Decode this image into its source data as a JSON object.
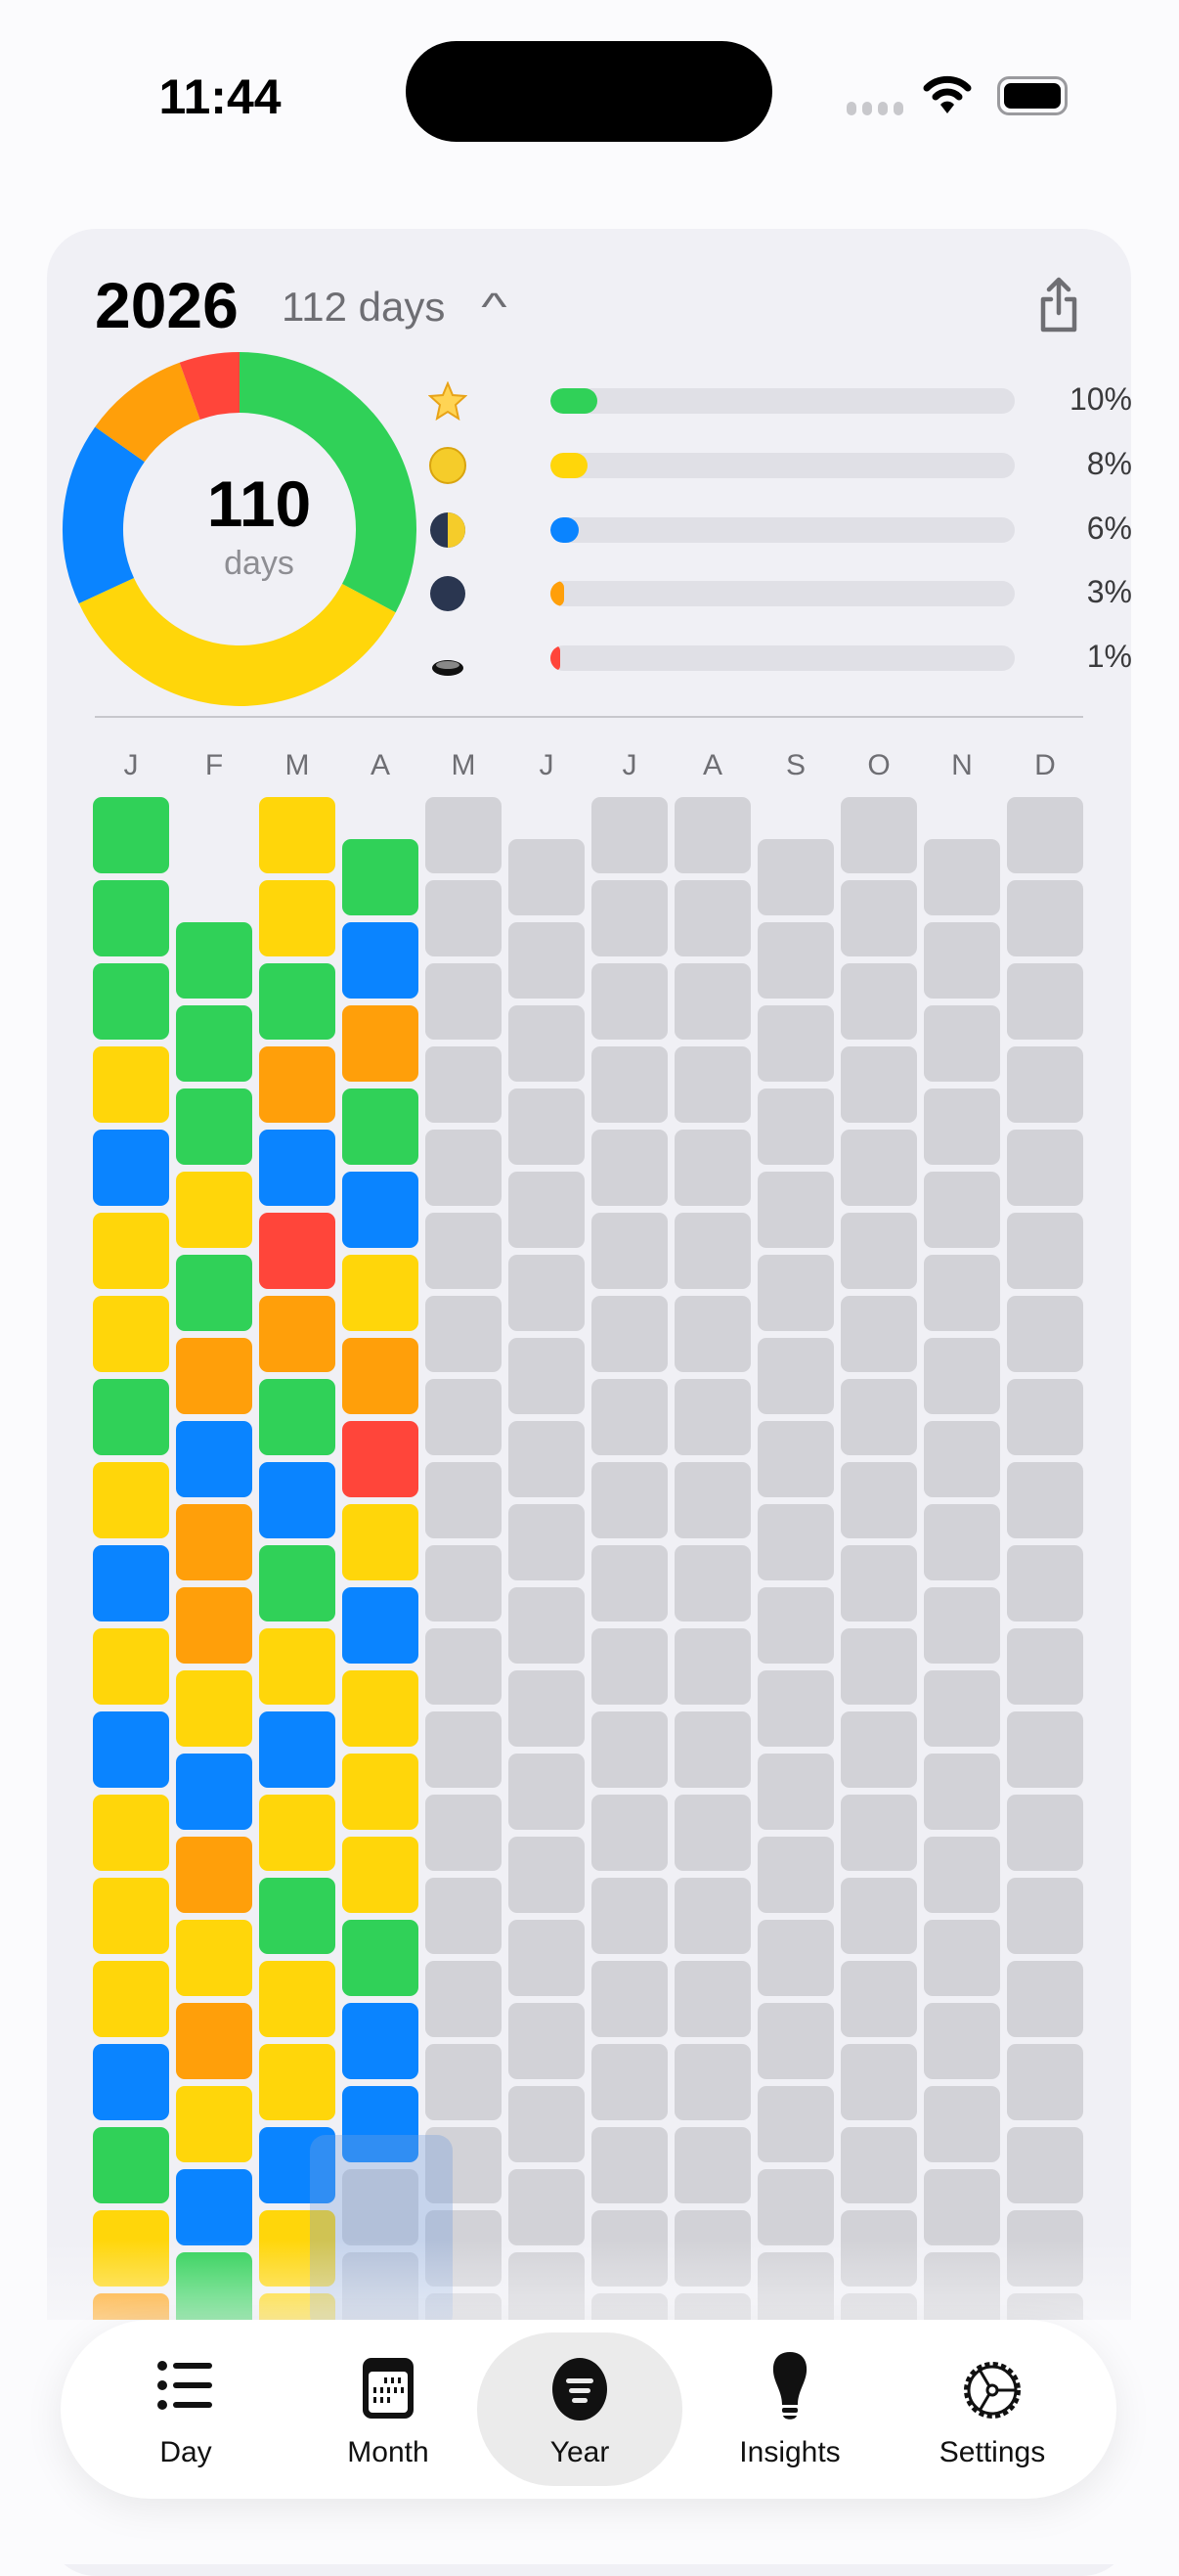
{
  "status_bar": {
    "time": "11:44"
  },
  "header": {
    "year": "2026",
    "day_count": "112 days",
    "collapse_icon": "chevron-up-icon",
    "share_icon": "share-icon"
  },
  "summary": {
    "total": "110",
    "unit": "days"
  },
  "colors": {
    "green": "#30d158",
    "yellow": "#ffd60a",
    "blue": "#0a84ff",
    "orange": "#ff9f0a",
    "red": "#ff453a",
    "empty": "#d2d2d7"
  },
  "donut_shares": [
    {
      "color": "green",
      "share": 0.328
    },
    {
      "color": "yellow",
      "share": 0.353
    },
    {
      "color": "blue",
      "share": 0.167
    },
    {
      "color": "orange",
      "share": 0.097
    },
    {
      "color": "red",
      "share": 0.055
    }
  ],
  "legend": [
    {
      "icon": "star-icon",
      "color": "green",
      "percent": 10,
      "label": "10%"
    },
    {
      "icon": "full-moon-icon",
      "color": "yellow",
      "percent": 8,
      "label": "8%"
    },
    {
      "icon": "half-moon-icon",
      "color": "blue",
      "percent": 6,
      "label": "6%"
    },
    {
      "icon": "new-moon-icon",
      "color": "orange",
      "percent": 3,
      "label": "3%"
    },
    {
      "icon": "hole-icon",
      "color": "red",
      "percent": 1,
      "label": "1%"
    }
  ],
  "months": [
    {
      "label": "J",
      "days": [
        "G",
        "G",
        "G",
        "Y",
        "B",
        "Y",
        "Y",
        "G",
        "Y",
        "B",
        "Y",
        "B",
        "Y",
        "Y",
        "Y",
        "B",
        "G",
        "Y",
        "O"
      ]
    },
    {
      "label": "F",
      "days": [
        "G",
        "G",
        "G",
        "Y",
        "G",
        "O",
        "B",
        "O",
        "O",
        "Y",
        "B",
        "O",
        "Y",
        "O",
        "Y",
        "B",
        "G"
      ]
    },
    {
      "label": "M",
      "days": [
        "Y",
        "Y",
        "G",
        "O",
        "B",
        "R",
        "O",
        "G",
        "B",
        "G",
        "Y",
        "B",
        "Y",
        "G",
        "Y",
        "Y",
        "B",
        "Y",
        "Y"
      ]
    },
    {
      "label": "A",
      "days": [
        "G",
        "B",
        "O",
        "G",
        "B",
        "Y",
        "O",
        "R",
        "Y",
        "B",
        "Y",
        "Y",
        "Y",
        "G",
        "B",
        "B"
      ]
    },
    {
      "label": "M",
      "days": []
    },
    {
      "label": "J",
      "days": []
    },
    {
      "label": "J",
      "days": []
    },
    {
      "label": "A",
      "days": []
    },
    {
      "label": "S",
      "days": []
    },
    {
      "label": "O",
      "days": []
    },
    {
      "label": "N",
      "days": []
    },
    {
      "label": "D",
      "days": []
    }
  ],
  "tabs": [
    {
      "label": "Day",
      "icon": "list-icon"
    },
    {
      "label": "Month",
      "icon": "calendar-icon"
    },
    {
      "label": "Year",
      "icon": "year-circle-icon",
      "active": true
    },
    {
      "label": "Insights",
      "icon": "lightbulb-icon"
    },
    {
      "label": "Settings",
      "icon": "gear-icon"
    }
  ]
}
